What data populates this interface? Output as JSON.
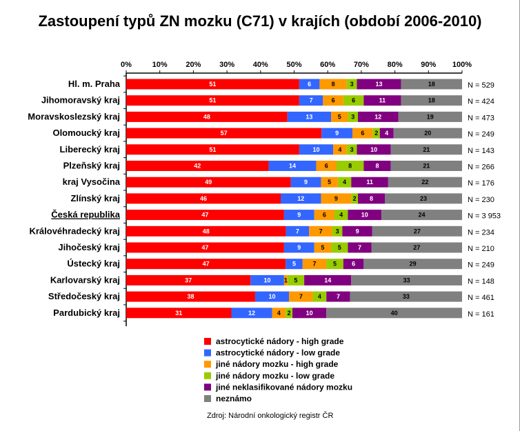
{
  "chart_data": {
    "type": "bar",
    "orientation": "horizontal",
    "stacked": true,
    "title": "Zastoupení typů ZN mozku (C71) v krajích (období 2006-2010)",
    "xlabel": "",
    "ylabel": "",
    "xlim": [
      0,
      100
    ],
    "xticks": [
      "0%",
      "10%",
      "20%",
      "30%",
      "40%",
      "50%",
      "60%",
      "70%",
      "80%",
      "90%",
      "100%"
    ],
    "legend_position": "bottom",
    "categories": [
      "Hl. m. Praha",
      "Jihomoravský kraj",
      "Moravskoslezský kraj",
      "Olomoucký kraj",
      "Liberecký kraj",
      "Plzeňský kraj",
      "kraj Vysočina",
      "Zlínský kraj",
      "Česká republika",
      "Královéhradecký kraj",
      "Jihočeský kraj",
      "Ústecký kraj",
      "Karlovarský kraj",
      "Středočeský kraj",
      "Pardubický kraj"
    ],
    "n_labels": [
      "N = 529",
      "N = 424",
      "N = 473",
      "N = 249",
      "N = 143",
      "N = 266",
      "N = 176",
      "N = 230",
      "N = 3 953",
      "N = 234",
      "N = 210",
      "N = 249",
      "N = 148",
      "N = 461",
      "N = 161"
    ],
    "series": [
      {
        "name": "astrocytické nádory - high grade",
        "color": "#ff0000",
        "text_color": "#ffffff",
        "values": [
          51,
          51,
          48,
          57,
          51,
          42,
          49,
          46,
          47,
          48,
          47,
          47,
          37,
          38,
          31
        ]
      },
      {
        "name": "astrocytické nádory - low grade",
        "color": "#3366ff",
        "text_color": "#ffffff",
        "values": [
          6,
          7,
          13,
          9,
          10,
          14,
          9,
          12,
          9,
          7,
          9,
          5,
          10,
          10,
          12
        ]
      },
      {
        "name": "jiné nádory mozku - high grade",
        "color": "#ff9900",
        "text_color": "#000000",
        "values": [
          8,
          6,
          5,
          6,
          4,
          6,
          5,
          9,
          6,
          7,
          5,
          7,
          1,
          7,
          4
        ]
      },
      {
        "name": "jiné nádory mozku - low grade",
        "color": "#99cc00",
        "text_color": "#000000",
        "values": [
          3,
          6,
          3,
          2,
          3,
          8,
          4,
          2,
          4,
          3,
          5,
          5,
          5,
          4,
          2
        ]
      },
      {
        "name": "jiné neklasifikované nádory mozku",
        "color": "#800080",
        "text_color": "#ffffff",
        "values": [
          13,
          11,
          12,
          4,
          10,
          8,
          11,
          8,
          10,
          9,
          7,
          6,
          14,
          7,
          10
        ]
      },
      {
        "name": "neznámo",
        "color": "#808080",
        "text_color": "#000000",
        "values": [
          18,
          18,
          19,
          20,
          21,
          21,
          22,
          23,
          24,
          27,
          27,
          29,
          33,
          33,
          40
        ]
      }
    ]
  },
  "source": "Zdroj: Národní onkologický registr ČR"
}
